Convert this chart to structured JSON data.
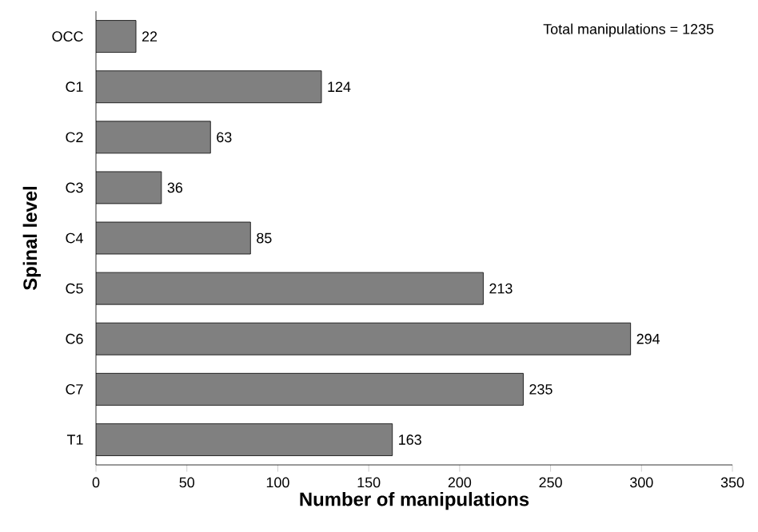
{
  "chart_data": {
    "type": "bar",
    "orientation": "horizontal",
    "xlabel": "Number of manipulations",
    "ylabel": "Spinal level",
    "categories": [
      "OCC",
      "C1",
      "C2",
      "C3",
      "C4",
      "C5",
      "C6",
      "C7",
      "T1"
    ],
    "values": [
      22,
      124,
      63,
      36,
      85,
      213,
      294,
      235,
      163
    ],
    "color": "#808080",
    "xlim": [
      0,
      350
    ],
    "xticks": [
      0,
      50,
      100,
      150,
      200,
      250,
      300,
      350
    ],
    "data_labels": true,
    "annotations": [
      "Total manipulations = 1235"
    ]
  }
}
